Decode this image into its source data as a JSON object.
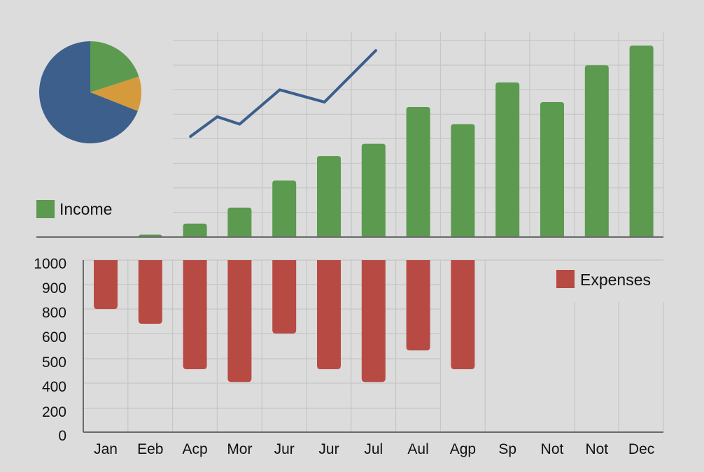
{
  "colors": {
    "income": "#5b9a4f",
    "expenses": "#b84a44",
    "line": "#3c5f8c",
    "pie": [
      "#5b9a4f",
      "#d49a3c",
      "#3c5f8c"
    ],
    "grid": "#c6c6c6",
    "axis": "#6a6a6a",
    "background": "#dcdcdc"
  },
  "chart_data": [
    {
      "type": "pie",
      "slices": [
        {
          "value": 20,
          "color": "#5b9a4f"
        },
        {
          "value": 11,
          "color": "#d49a3c"
        },
        {
          "value": 69,
          "color": "#3c5f8c"
        }
      ]
    },
    {
      "type": "bar",
      "categories": [
        "Jan",
        "Eeb",
        "Acp",
        "Mor",
        "Jur",
        "Jur",
        "Jul",
        "Aul",
        "Agp",
        "Sp",
        "Not",
        "Not",
        "Dec"
      ],
      "series": [
        {
          "name": "Income",
          "values": [
            0,
            0.1,
            0.55,
            1.2,
            2.3,
            3.3,
            3.8,
            5.3,
            4.6,
            6.3,
            5.5,
            7.0,
            7.8
          ]
        }
      ],
      "y_axis_labels": "none",
      "grid": true,
      "legend": "left"
    },
    {
      "type": "line",
      "x_category_positions": [
        1.9,
        2.5,
        3.0,
        3.9,
        4.9,
        6.05
      ],
      "values": [
        4.1,
        4.9,
        4.6,
        6.0,
        5.5,
        7.6
      ]
    },
    {
      "type": "bar",
      "orientation": "hanging from top",
      "categories": [
        "Jan",
        "Eeb",
        "Acp",
        "Mor",
        "Jur",
        "Jur",
        "Jul",
        "Aul",
        "Agp",
        "Sp",
        "Not",
        "Not",
        "Dec"
      ],
      "series": [
        {
          "name": "Expenses",
          "values": [
            800,
            680,
            457,
            405,
            600,
            457,
            405,
            533,
            457,
            null,
            null,
            null,
            null
          ]
        }
      ],
      "y_ticks": [
        "1000",
        "900",
        "800",
        "600",
        "500",
        "400",
        "200",
        "0"
      ],
      "ylim": [
        0,
        1000
      ],
      "grid": true,
      "legend": "top-right"
    }
  ],
  "legend": {
    "income_label": "Income",
    "expenses_label": "Expenses"
  }
}
